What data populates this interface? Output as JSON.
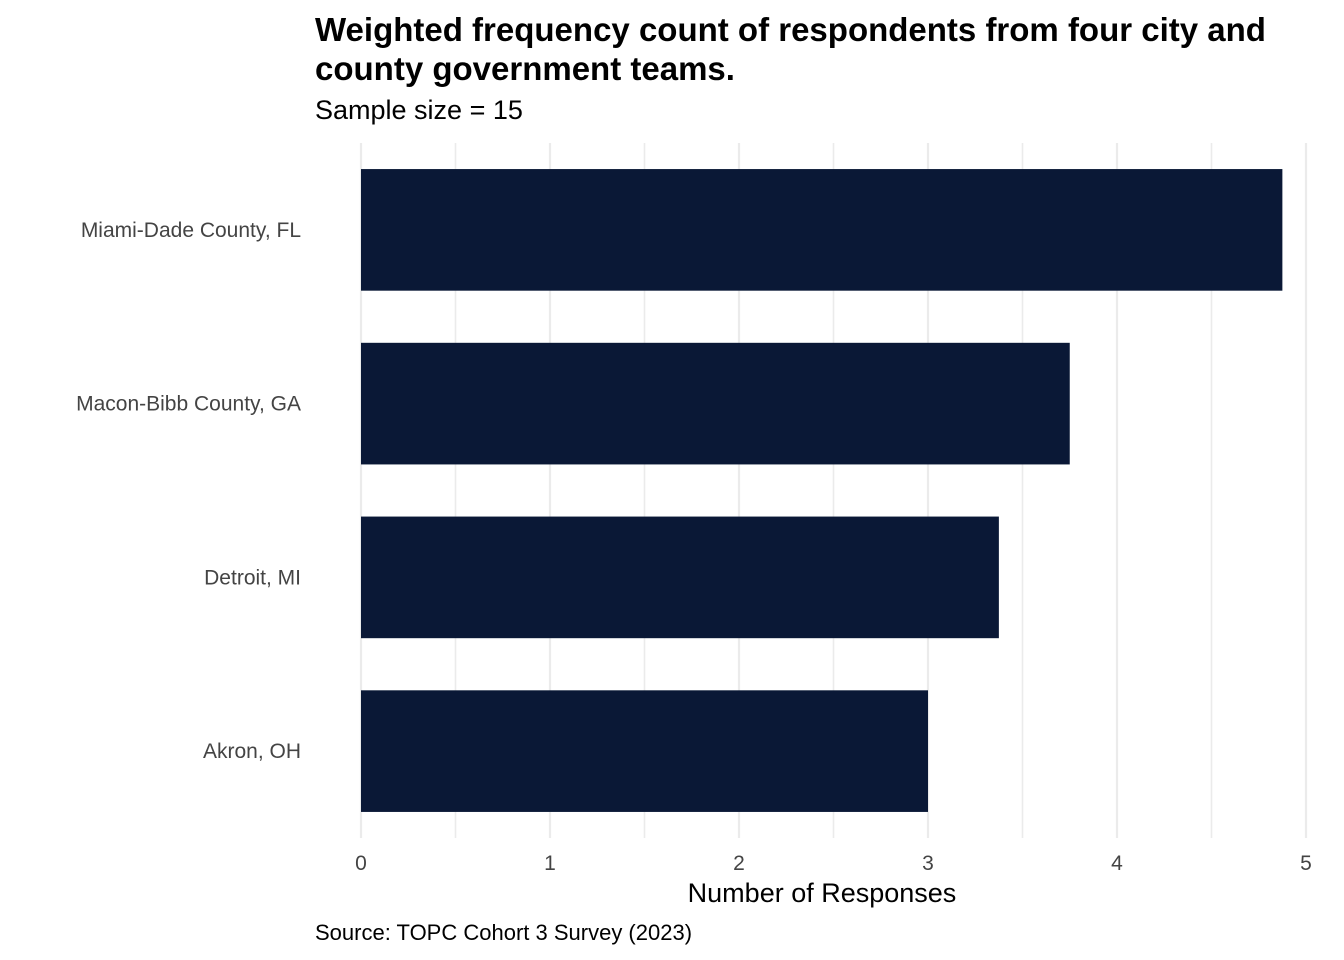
{
  "chart_data": {
    "type": "bar",
    "orientation": "horizontal",
    "title": "Weighted frequency count of respondents from four city and county government teams.",
    "subtitle": "Sample size = 15",
    "caption": "Source: TOPC Cohort 3 Survey (2023)",
    "xlabel": "Number of Responses",
    "ylabel": "",
    "categories": [
      "Miami-Dade County, FL",
      "Macon-Bibb County, GA",
      "Detroit, MI",
      "Akron, OH"
    ],
    "values": [
      4.875,
      3.75,
      3.375,
      3.0
    ],
    "xlim": [
      0,
      5
    ],
    "x_ticks": [
      "0",
      "1",
      "2",
      "3",
      "4",
      "5"
    ],
    "grid": true,
    "legend": "none",
    "bar_color": "#0a1836",
    "grid_color": "#ebebeb"
  }
}
